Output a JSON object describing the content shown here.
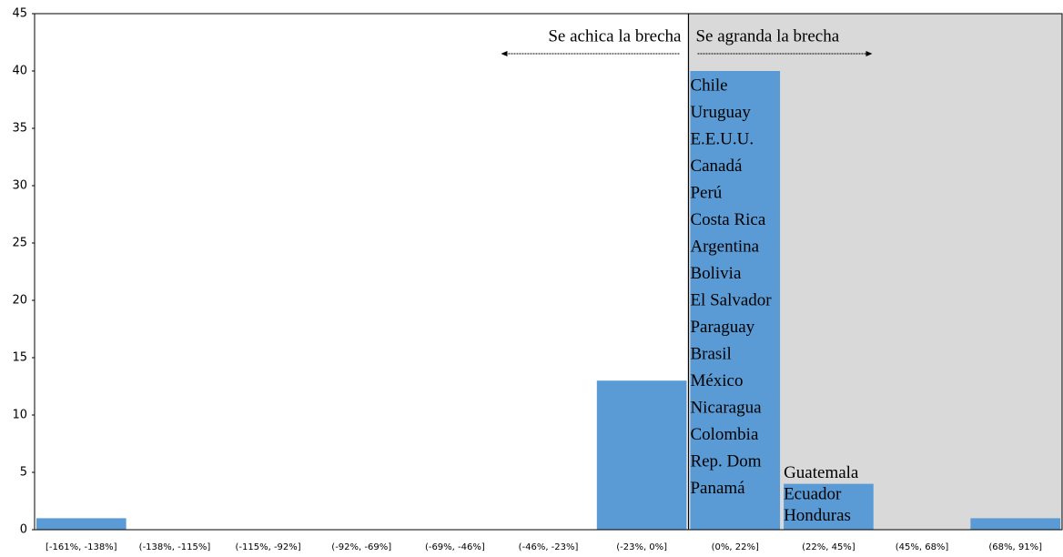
{
  "chart_data": {
    "type": "bar",
    "categories": [
      "[-161%, -138%]",
      "(-138%, -115%]",
      "(-115%, -92%]",
      "(-92%, -69%]",
      "(-69%, -46%]",
      "(-46%, -23%]",
      "(-23%, 0%]",
      "(0%, 22%]",
      "(22%, 45%]",
      "(45%, 68%]",
      "(68%, 91%]"
    ],
    "values": [
      1,
      0,
      0,
      0,
      0,
      0,
      13,
      40,
      4,
      0,
      1
    ],
    "color": "#5b9bd5",
    "ylim": [
      0,
      45
    ],
    "yticks": [
      0,
      5,
      10,
      15,
      20,
      25,
      30,
      35,
      40,
      45
    ],
    "grid": false,
    "shaded_region": {
      "start_category": 7,
      "color": "#d9d9d9"
    },
    "annotations": {
      "left": "Se achica la brecha",
      "right": "Se agranda la brecha"
    },
    "bar_labels": [
      [],
      [],
      [],
      [],
      [],
      [],
      [],
      [
        "Chile",
        "Uruguay",
        "E.E.U.U.",
        "Canadá",
        "Perú",
        "Costa Rica",
        "Argentina",
        "Bolivia",
        "El Salvador",
        "Paraguay",
        "Brasil",
        "México",
        "Nicaragua",
        "Colombia",
        "Rep. Dom",
        "Panamá"
      ],
      [
        "Guatemala",
        "Ecuador",
        "Honduras"
      ],
      [],
      []
    ]
  }
}
